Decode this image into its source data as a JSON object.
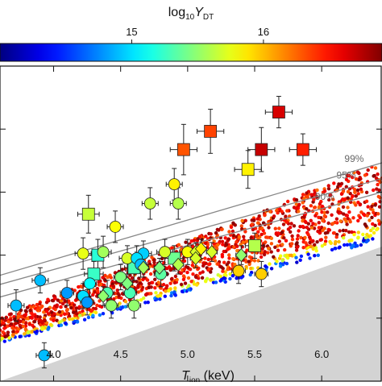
{
  "chart_data": {
    "type": "scatter",
    "colorbar": {
      "label_base": "log",
      "label_sub": "10",
      "label_var": "Y",
      "label_var_sub": "DT",
      "ticks": [
        {
          "value": 15,
          "label": "15"
        },
        {
          "value": 16,
          "label": "16"
        }
      ],
      "range": [
        14.0,
        16.9
      ],
      "colormap": "jet"
    },
    "xaxis": {
      "label_var": "T",
      "label_sub": "ion",
      "label_unit": " (keV)",
      "range": [
        3.6,
        6.45
      ],
      "ticks": [
        {
          "value": 4.0,
          "label": "4.0"
        },
        {
          "value": 4.5,
          "label": "4.5"
        },
        {
          "value": 5.0,
          "label": "5.0"
        },
        {
          "value": 5.5,
          "label": "5.5"
        },
        {
          "value": 6.0,
          "label": "6.0"
        }
      ]
    },
    "yaxis": {
      "range": [
        0.0,
        1.0
      ],
      "ticks": [
        0.2,
        0.4,
        0.6,
        0.8
      ]
    },
    "contours": [
      {
        "label": "99%",
        "y_at_start": 0.336,
        "y_at_end": 0.693,
        "label_x": 6.17,
        "label_y": 0.69
      },
      {
        "label": "95%",
        "y_at_start": 0.307,
        "y_at_end": 0.643,
        "label_x": 6.11,
        "label_y": 0.638
      },
      {
        "label": "90%",
        "y_at_start": 0.267,
        "y_at_end": 0.6,
        "label_x": 5.95,
        "label_y": 0.57
      }
    ],
    "excluded_region": {
      "color": "#d3d3d3",
      "y_at_start": 0.0,
      "y_at_end": 0.427
    },
    "simulation_band": {
      "lower_at_start": 0.12,
      "lower_at_end": 0.45,
      "upper_at_start": 0.2,
      "upper_at_end": 0.7,
      "x_start": 3.6,
      "x_end": 6.45
    },
    "series": [
      {
        "marker": "square",
        "points": [
          {
            "x": 5.68,
            "y": 0.854,
            "c": 16.65,
            "xerr": 0.1,
            "yerr": 0.05
          },
          {
            "x": 5.17,
            "y": 0.793,
            "c": 16.35,
            "xerr": 0.1,
            "yerr": 0.07
          },
          {
            "x": 4.97,
            "y": 0.735,
            "c": 16.3,
            "xerr": 0.1,
            "yerr": 0.08
          },
          {
            "x": 5.55,
            "y": 0.735,
            "c": 16.7,
            "xerr": 0.1,
            "yerr": 0.07
          },
          {
            "x": 5.86,
            "y": 0.735,
            "c": 16.45,
            "xerr": 0.1,
            "yerr": 0.05
          },
          {
            "x": 5.45,
            "y": 0.672,
            "c": 15.85,
            "xerr": 0.1,
            "yerr": 0.06
          },
          {
            "x": 4.26,
            "y": 0.53,
            "c": 15.65,
            "xerr": 0.08,
            "yerr": 0.06
          },
          {
            "x": 4.33,
            "y": 0.4,
            "c": 15.2,
            "xerr": 0.08,
            "yerr": 0.05
          },
          {
            "x": 4.3,
            "y": 0.34,
            "c": 15.25,
            "xerr": 0.07,
            "yerr": 0.04
          },
          {
            "x": 4.6,
            "y": 0.36,
            "c": 15.3,
            "xerr": 0.07,
            "yerr": 0.04
          },
          {
            "x": 5.5,
            "y": 0.43,
            "c": 15.6,
            "xerr": 0.07,
            "yerr": 0.04
          },
          {
            "x": 4.9,
            "y": 0.39,
            "c": 15.4,
            "xerr": 0.07,
            "yerr": 0.04
          }
        ]
      },
      {
        "marker": "circle",
        "points": [
          {
            "x": 4.9,
            "y": 0.625,
            "c": 15.85,
            "xerr": 0.06,
            "yerr": 0.05
          },
          {
            "x": 4.72,
            "y": 0.564,
            "c": 15.65,
            "xerr": 0.06,
            "yerr": 0.05
          },
          {
            "x": 4.93,
            "y": 0.564,
            "c": 15.6,
            "xerr": 0.06,
            "yerr": 0.05
          },
          {
            "x": 4.46,
            "y": 0.49,
            "c": 15.8,
            "xerr": 0.06,
            "yerr": 0.05
          },
          {
            "x": 4.22,
            "y": 0.405,
            "c": 15.75,
            "xerr": 0.06,
            "yerr": 0.05
          },
          {
            "x": 4.37,
            "y": 0.41,
            "c": 15.55,
            "xerr": 0.06,
            "yerr": 0.05
          },
          {
            "x": 4.55,
            "y": 0.39,
            "c": 15.7,
            "xerr": 0.06,
            "yerr": 0.04
          },
          {
            "x": 4.67,
            "y": 0.405,
            "c": 14.95,
            "xerr": 0.06,
            "yerr": 0.04
          },
          {
            "x": 4.83,
            "y": 0.41,
            "c": 15.7,
            "xerr": 0.06,
            "yerr": 0.04
          },
          {
            "x": 5.0,
            "y": 0.41,
            "c": 15.8,
            "xerr": 0.06,
            "yerr": 0.04
          },
          {
            "x": 4.62,
            "y": 0.39,
            "c": 15.0,
            "xerr": 0.05,
            "yerr": 0.04
          },
          {
            "x": 4.65,
            "y": 0.37,
            "c": 14.9,
            "xerr": 0.05,
            "yerr": 0.04
          },
          {
            "x": 4.8,
            "y": 0.34,
            "c": 15.35,
            "xerr": 0.05,
            "yerr": 0.04
          },
          {
            "x": 5.38,
            "y": 0.35,
            "c": 15.95,
            "xerr": 0.05,
            "yerr": 0.04
          },
          {
            "x": 5.55,
            "y": 0.34,
            "c": 15.95,
            "xerr": 0.05,
            "yerr": 0.04
          },
          {
            "x": 4.5,
            "y": 0.33,
            "c": 15.45,
            "xerr": 0.05,
            "yerr": 0.04
          },
          {
            "x": 4.27,
            "y": 0.31,
            "c": 15.1,
            "xerr": 0.05,
            "yerr": 0.04
          },
          {
            "x": 4.57,
            "y": 0.28,
            "c": 15.3,
            "xerr": 0.05,
            "yerr": 0.04
          },
          {
            "x": 4.4,
            "y": 0.28,
            "c": 15.3,
            "xerr": 0.05,
            "yerr": 0.04
          },
          {
            "x": 4.22,
            "y": 0.27,
            "c": 15.0,
            "xerr": 0.05,
            "yerr": 0.04
          },
          {
            "x": 4.1,
            "y": 0.28,
            "c": 14.8,
            "xerr": 0.05,
            "yerr": 0.04
          },
          {
            "x": 4.25,
            "y": 0.25,
            "c": 14.8,
            "xerr": 0.05,
            "yerr": 0.04
          },
          {
            "x": 4.43,
            "y": 0.24,
            "c": 15.5,
            "xerr": 0.05,
            "yerr": 0.04
          },
          {
            "x": 4.6,
            "y": 0.24,
            "c": 15.5,
            "xerr": 0.05,
            "yerr": 0.04
          },
          {
            "x": 3.9,
            "y": 0.32,
            "c": 14.9,
            "xerr": 0.06,
            "yerr": 0.04
          },
          {
            "x": 3.72,
            "y": 0.24,
            "c": 14.9,
            "xerr": 0.06,
            "yerr": 0.05
          },
          {
            "x": 3.93,
            "y": 0.082,
            "c": 14.9,
            "xerr": 0.06,
            "yerr": 0.04
          }
        ]
      },
      {
        "marker": "diamond",
        "points": [
          {
            "x": 5.06,
            "y": 0.41,
            "c": 15.7,
            "xerr": 0.04,
            "yerr": 0.03
          },
          {
            "x": 5.1,
            "y": 0.42,
            "c": 15.85,
            "xerr": 0.04,
            "yerr": 0.03
          },
          {
            "x": 5.18,
            "y": 0.41,
            "c": 15.7,
            "xerr": 0.04,
            "yerr": 0.03
          },
          {
            "x": 5.06,
            "y": 0.39,
            "c": 15.7,
            "xerr": 0.04,
            "yerr": 0.03
          },
          {
            "x": 4.93,
            "y": 0.37,
            "c": 15.6,
            "xerr": 0.04,
            "yerr": 0.03
          },
          {
            "x": 4.79,
            "y": 0.36,
            "c": 15.45,
            "xerr": 0.04,
            "yerr": 0.03
          },
          {
            "x": 4.67,
            "y": 0.36,
            "c": 15.55,
            "xerr": 0.04,
            "yerr": 0.03
          },
          {
            "x": 4.55,
            "y": 0.31,
            "c": 15.45,
            "xerr": 0.04,
            "yerr": 0.03
          },
          {
            "x": 5.4,
            "y": 0.4,
            "c": 15.5,
            "xerr": 0.04,
            "yerr": 0.03
          },
          {
            "x": 4.37,
            "y": 0.27,
            "c": 15.5,
            "xerr": 0.04,
            "yerr": 0.03
          }
        ]
      }
    ]
  }
}
